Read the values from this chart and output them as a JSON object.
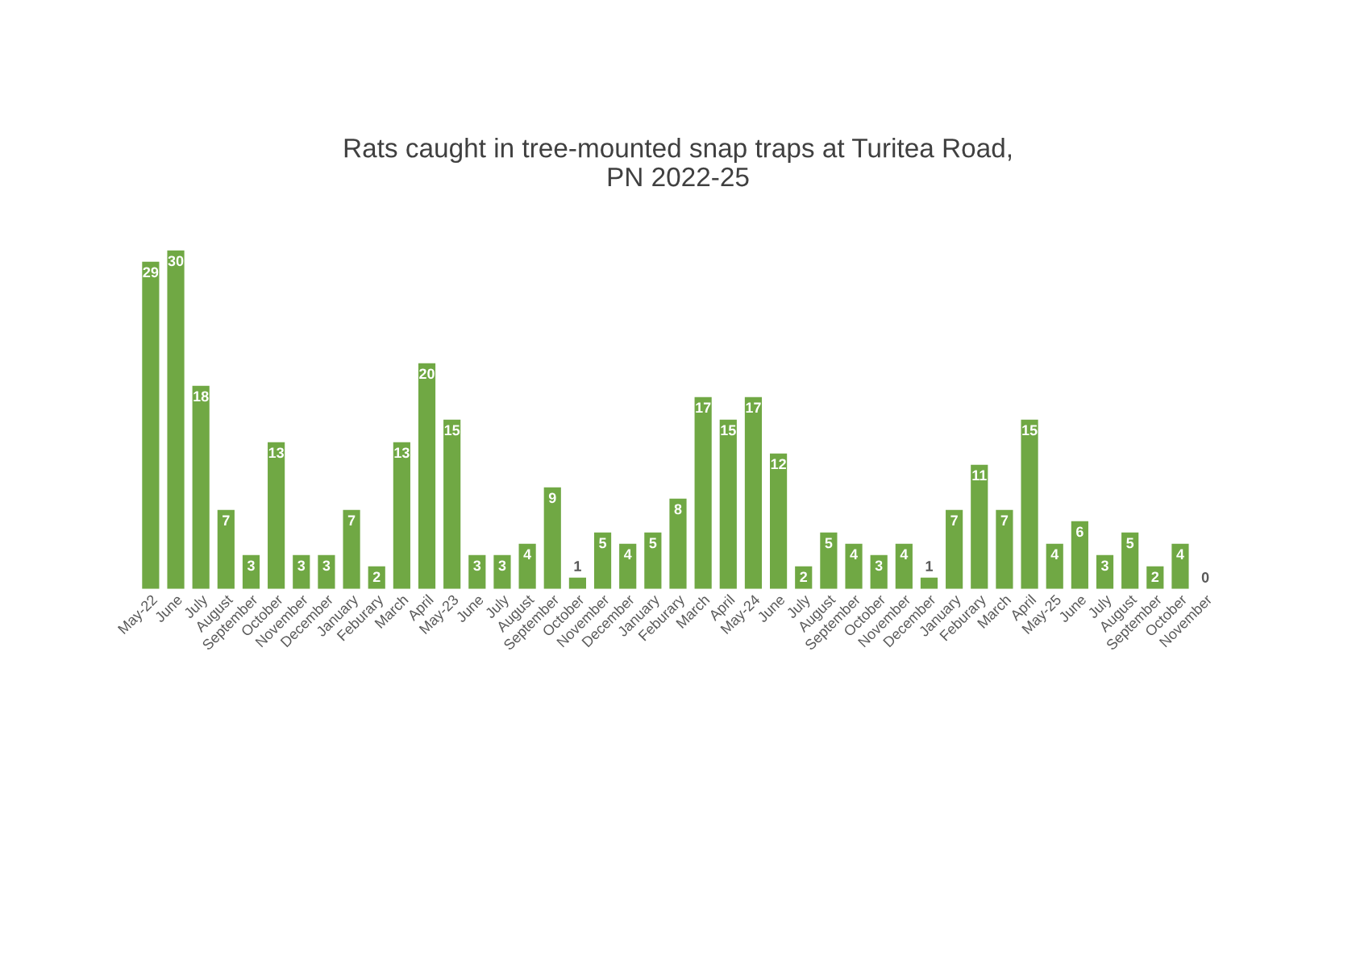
{
  "chart_data": {
    "type": "bar",
    "title": "Rats caught in tree-mounted snap traps at Turitea Road,\nPN 2022-25",
    "categories": [
      "May-22",
      "June",
      "July",
      "August",
      "September",
      "October",
      "November",
      "December",
      "January",
      "Feburary",
      "March",
      "April",
      "May-23",
      "June",
      "July",
      "August",
      "September",
      "October",
      "November",
      "December",
      "January",
      "Feburary",
      "March",
      "April",
      "May-24",
      "June",
      "July",
      "August",
      "September",
      "October",
      "November",
      "December",
      "January",
      "Feburary",
      "March",
      "April",
      "May-25",
      "June",
      "July",
      "August",
      "September",
      "October",
      "November"
    ],
    "values": [
      29,
      30,
      18,
      7,
      3,
      13,
      3,
      3,
      7,
      2,
      13,
      20,
      15,
      3,
      3,
      4,
      9,
      1,
      5,
      4,
      5,
      8,
      17,
      15,
      17,
      12,
      2,
      5,
      4,
      3,
      4,
      1,
      7,
      11,
      7,
      15,
      4,
      6,
      3,
      5,
      2,
      4,
      0
    ],
    "color": "#70a844",
    "data_labels": true,
    "grid": false,
    "legend": false
  }
}
